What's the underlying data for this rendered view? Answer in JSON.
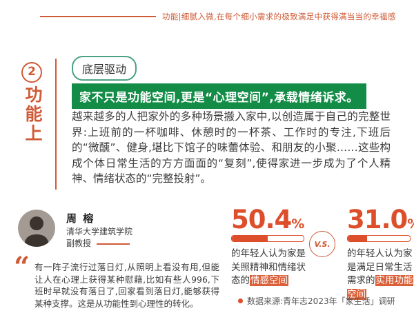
{
  "header": {
    "tagline": "功能|细腻入微,在每个细小需求的极致满足中获得满当当的幸福感"
  },
  "sidebar": {
    "index_number": "2",
    "vertical_title": "功能上"
  },
  "section": {
    "badge": "底层驱动",
    "headline": "家不只是功能空间,更是“心理空间”,承载情绪诉求。",
    "paragraph": "越来越多的人把家外的多种场景搬入家中,以创造属于自己的完整世界:上班前的一杯咖啡、休憩时的一杯茶、工作时的专注,下班后的“微醺”、健身,堪比下馆子的味蕾体验、和朋友的小聚……这些构成个体日常生活的方方面面的“复刻”,使得家进一步成为了个人精神、情绪状态的“完整投射”。"
  },
  "expert": {
    "name": "周 榕",
    "affiliation": "清华大学建筑学院",
    "title": "副教授",
    "quote_mark": "“",
    "quote": "有一阵子流行过落日灯,从照明上看没有用,但能让人在心理上获得某种慰藉,比如有些人996,下班时早就没有落日了,回家看到落日灯,能够获得某种支撑。这是从功能性到心理性的转化。"
  },
  "stats": {
    "unit": "%",
    "versus_label": "V.S.",
    "left": {
      "value": "50.4",
      "bar_percent": 50.4,
      "desc_prefix": "的年轻人认为家是关照精神和情绪状态的",
      "desc_highlight": "情感空间"
    },
    "right": {
      "value": "31.0",
      "bar_percent": 31,
      "desc_prefix": "的年轻人认为家是满足日常生活需求的",
      "desc_highlight": "实用功能空间"
    }
  },
  "source": {
    "text": "数据来源:青年志2023年「家生活」调研"
  },
  "colors": {
    "accent": "#CF5A36",
    "stat_orange": "#DD4F2B",
    "green": "#128C46",
    "badge_border": "#4BA181",
    "highlight": "#DB6038",
    "text_dark": "#3C3C3C",
    "text_muted": "#555555"
  }
}
